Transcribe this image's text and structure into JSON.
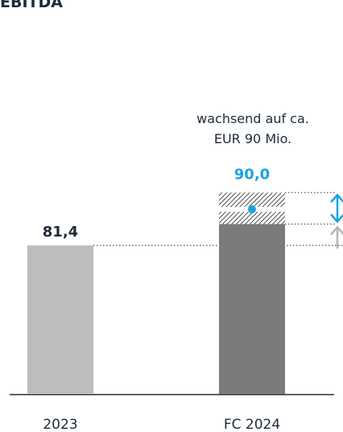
{
  "chart_data": {
    "type": "bar",
    "title": "EBITDA",
    "annotation": [
      "wachsend auf ca.",
      "EUR 90 Mio."
    ],
    "categories": [
      "2023",
      "FC 2024"
    ],
    "values": [
      81.4,
      90.0
    ],
    "value_labels": [
      "81,4",
      "90,0"
    ],
    "colors": [
      "#bdbdbd",
      "#7b7b7b"
    ],
    "forecast_range": [
      86.5,
      94
    ],
    "forecast_color": "#1aa3e0",
    "ylim": [
      46,
      100
    ]
  }
}
